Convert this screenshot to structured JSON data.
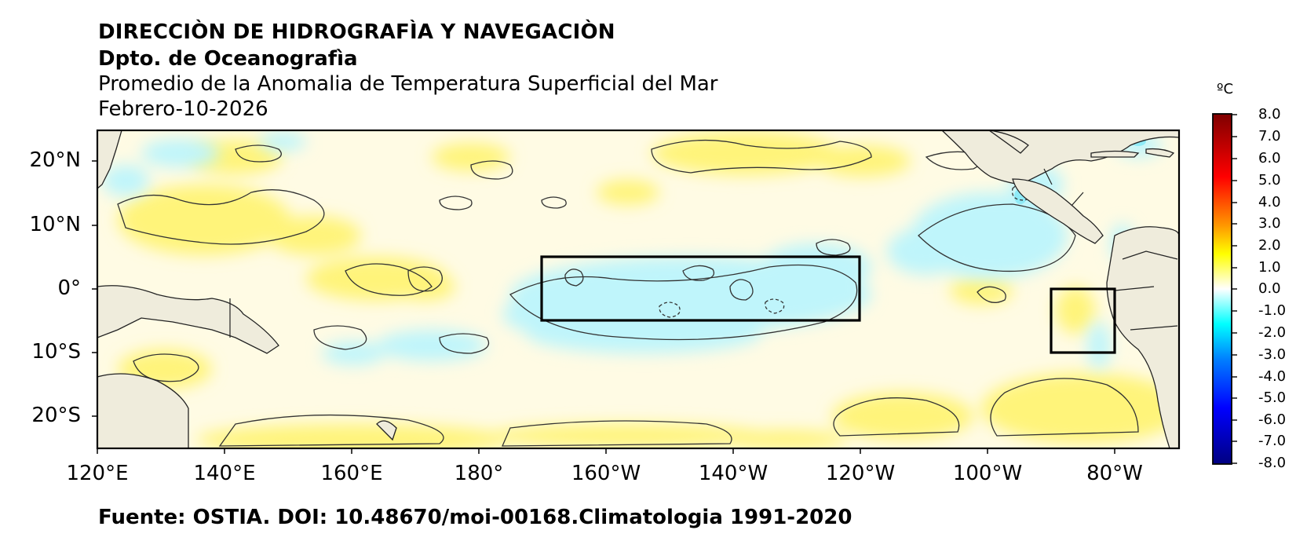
{
  "header": {
    "line1": "DIRECCIÒN DE HIDROGRAFÌA Y NAVEGACIÒN",
    "line2": "Dpto. de Oceanografìa",
    "line3": "Promedio de la Anomalia de Temperatura Superficial del Mar",
    "line4": "Febrero-10-2026"
  },
  "map": {
    "lat_labels": [
      "20°N",
      "10°N",
      "0°",
      "10°S",
      "20°S"
    ],
    "lon_labels": [
      "120°E",
      "140°E",
      "160°E",
      "180°",
      "160°W",
      "140°W",
      "120°W",
      "100°W",
      "80°W"
    ],
    "land_color": "#efecdc",
    "ocean_warm_color": "#fff36a",
    "ocean_neutral_color": "#fffbe0",
    "ocean_cool_color": "#b7f3fb"
  },
  "colorbar": {
    "unit": "ºC",
    "ticks": [
      "8.0",
      "7.0",
      "6.0",
      "5.0",
      "4.0",
      "3.0",
      "2.0",
      "1.0",
      "0.0",
      "-1.0",
      "-2.0",
      "-3.0",
      "-4.0",
      "-5.0",
      "-6.0",
      "-7.0",
      "-8.0"
    ],
    "colors": [
      "#7f0000",
      "#ff0000",
      "#ff9900",
      "#ffff00",
      "#ffffff",
      "#00ffff",
      "#0080ff",
      "#0000ff",
      "#000080"
    ]
  },
  "footer": {
    "source": "Fuente: OSTIA. DOI: 10.48670/moi-00168.Climatologia 1991-2020"
  }
}
